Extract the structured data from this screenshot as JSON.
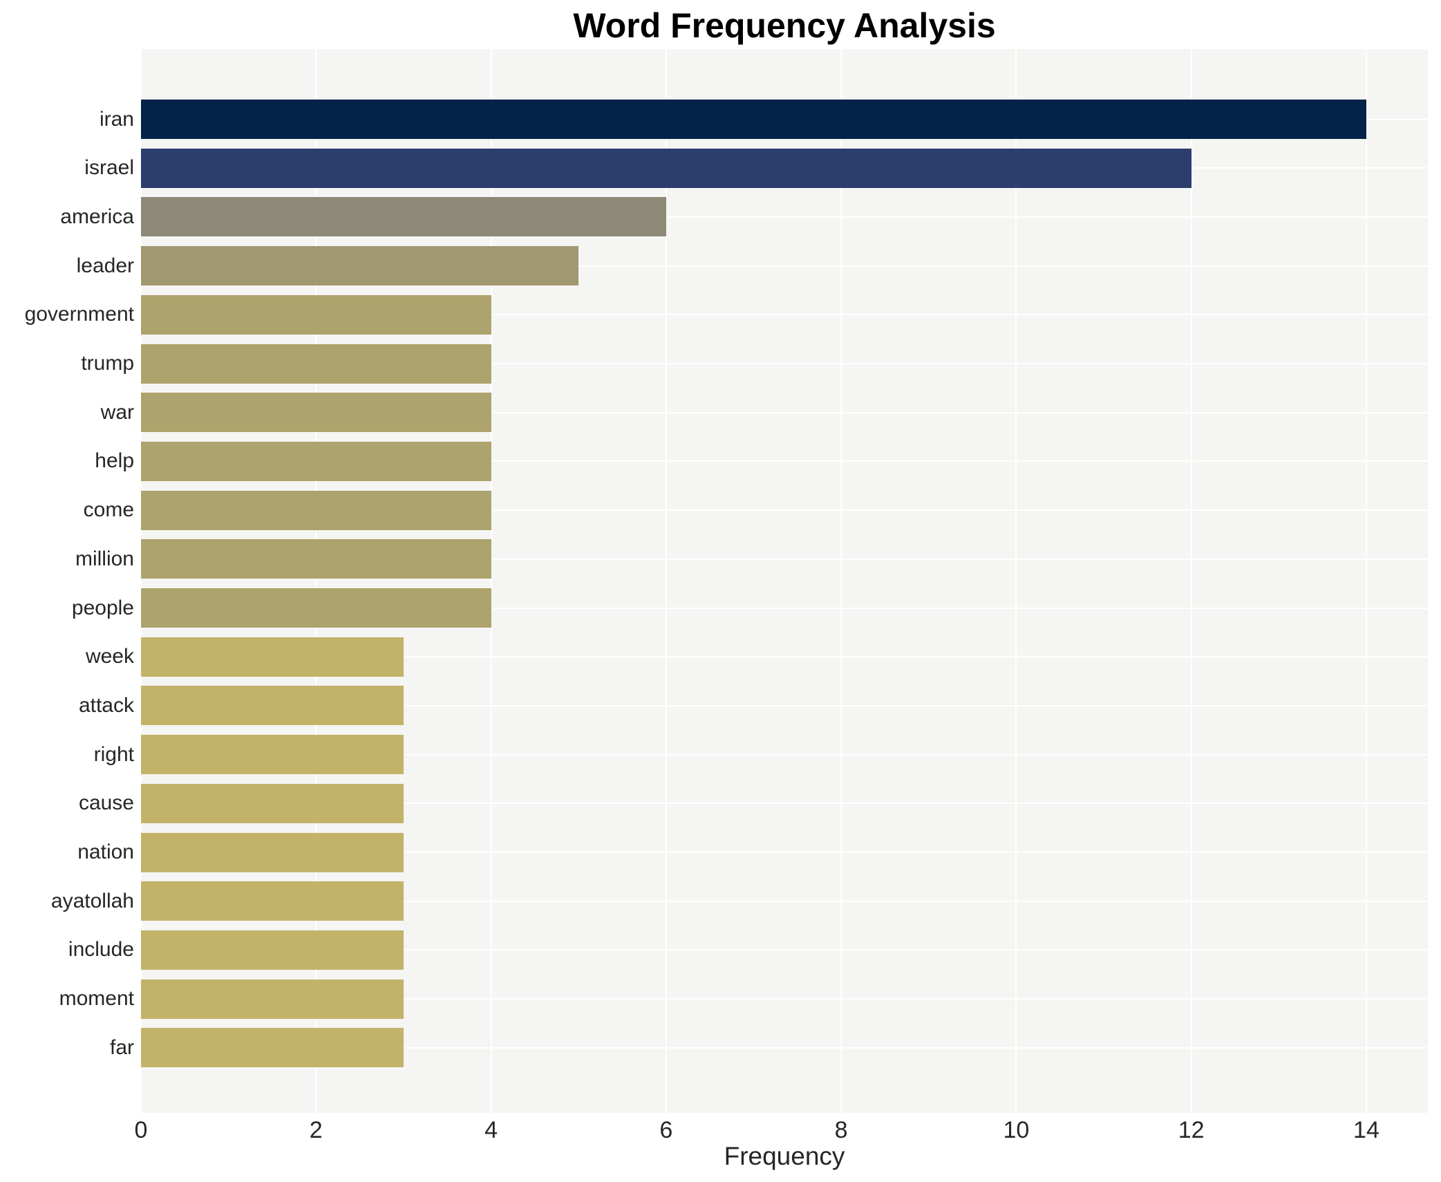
{
  "figure": {
    "title": "Word Frequency Analysis"
  },
  "chart_data": {
    "type": "bar",
    "orientation": "horizontal",
    "title": "Word Frequency Analysis",
    "xlabel": "Frequency",
    "ylabel": "",
    "categories": [
      "iran",
      "israel",
      "america",
      "leader",
      "government",
      "trump",
      "war",
      "help",
      "come",
      "million",
      "people",
      "week",
      "attack",
      "right",
      "cause",
      "nation",
      "ayatollah",
      "include",
      "moment",
      "far"
    ],
    "values": [
      14,
      12,
      6,
      5,
      4,
      4,
      4,
      4,
      4,
      4,
      4,
      3,
      3,
      3,
      3,
      3,
      3,
      3,
      3,
      3
    ],
    "bar_colors": [
      "#032349",
      "#2b3e6d",
      "#8e8877",
      "#a09870",
      "#ada36c",
      "#ada36c",
      "#ada36c",
      "#ada36c",
      "#ada36c",
      "#ada36c",
      "#ada36c",
      "#c2b369",
      "#c2b369",
      "#c2b369",
      "#c2b369",
      "#c2b369",
      "#c2b369",
      "#c2b369",
      "#c2b369",
      "#c2b369"
    ],
    "x_ticks": [
      0,
      2,
      4,
      6,
      8,
      10,
      12,
      14
    ],
    "xlim": [
      0,
      14.7
    ],
    "grid": true,
    "legend": false,
    "plot_bgcolor": "#f5f5f3",
    "gridline_color": "#ffffff",
    "label_color": "#262626",
    "title_color": "#000000"
  }
}
